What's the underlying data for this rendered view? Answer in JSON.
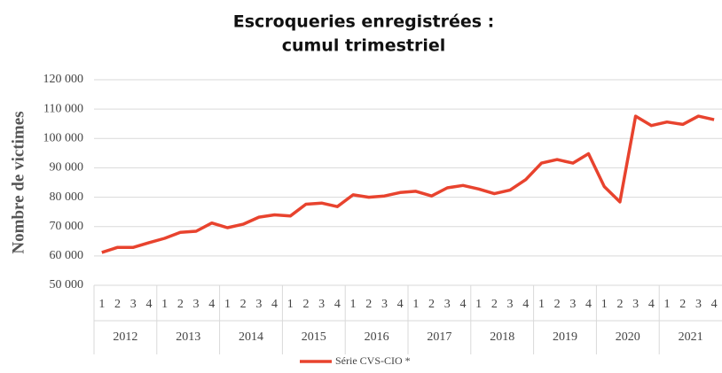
{
  "chart_data": {
    "type": "line",
    "title": [
      "Escroqueries enregistrées :",
      "cumul trimestriel"
    ],
    "y_label": "Nombre de victimes",
    "categories": [
      "1",
      "2",
      "3",
      "4",
      "1",
      "2",
      "3",
      "4",
      "1",
      "2",
      "3",
      "4",
      "1",
      "2",
      "3",
      "4",
      "1",
      "2",
      "3",
      "4",
      "1",
      "2",
      "3",
      "4",
      "1",
      "2",
      "3",
      "4",
      "1",
      "2",
      "3",
      "4",
      "1",
      "2",
      "3",
      "4",
      "1",
      "2",
      "3",
      "4"
    ],
    "groups": [
      "2012",
      "2013",
      "2014",
      "2015",
      "2016",
      "2017",
      "2018",
      "2019",
      "2020",
      "2021"
    ],
    "series": [
      {
        "name": "Série CVS-CIO *",
        "color": "#e8432e",
        "values": [
          61200,
          62900,
          62900,
          64500,
          66000,
          68000,
          68400,
          71200,
          69600,
          70800,
          73200,
          74000,
          73600,
          77600,
          78000,
          76800,
          80800,
          80000,
          80400,
          81600,
          82000,
          80400,
          83200,
          84000,
          82800,
          81200,
          82400,
          86000,
          91600,
          92800,
          91600,
          94800,
          83600,
          78400,
          107600,
          104400,
          105600,
          104800,
          107600,
          106400
        ]
      }
    ],
    "ylim": [
      50000,
      120000
    ],
    "yticks": [
      {
        "value": 50000,
        "label": "50 000"
      },
      {
        "value": 60000,
        "label": "60 000"
      },
      {
        "value": 70000,
        "label": "70 000"
      },
      {
        "value": 80000,
        "label": "80 000"
      },
      {
        "value": 90000,
        "label": "90 000"
      },
      {
        "value": 100000,
        "label": "100 000"
      },
      {
        "value": 110000,
        "label": "110 000"
      },
      {
        "value": 120000,
        "label": "120 000"
      }
    ],
    "grid": true,
    "legend": "bottom"
  }
}
